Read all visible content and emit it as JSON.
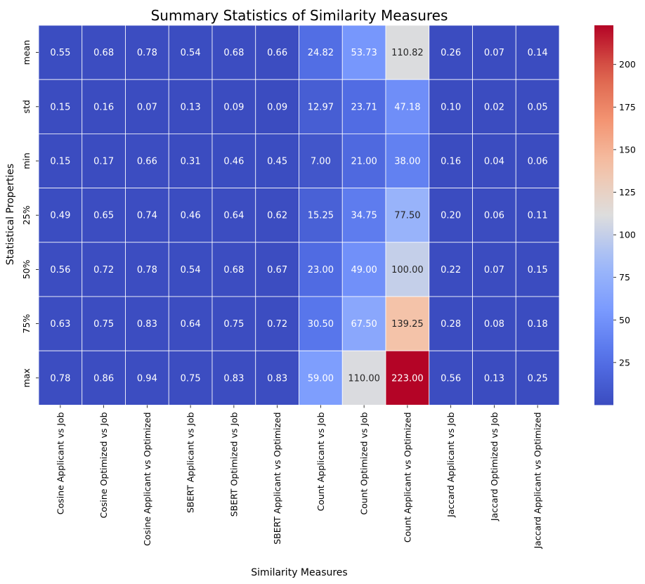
{
  "chart_data": {
    "type": "heatmap",
    "title": "Summary Statistics of Similarity Measures",
    "xlabel": "Similarity Measures",
    "ylabel": "Statistical Properties",
    "columns": [
      "Cosine Applicant vs Job",
      "Cosine Optimized vs Job",
      "Cosine Applicant vs Optimized",
      "SBERT Applicant vs Job",
      "SBERT Optimized vs Job",
      "SBERT Applicant vs Optimized",
      "Count Applicant vs Job",
      "Count Optimized vs Job",
      "Count Applicant vs Optimized",
      "Jaccard Applicant vs Job",
      "Jaccard Optimized vs Job",
      "Jaccard Applicant vs Optimized"
    ],
    "rows": [
      "mean",
      "std",
      "min",
      "25%",
      "50%",
      "75%",
      "max"
    ],
    "values": [
      [
        0.55,
        0.68,
        0.78,
        0.54,
        0.68,
        0.66,
        24.82,
        53.73,
        110.82,
        0.26,
        0.07,
        0.14
      ],
      [
        0.15,
        0.16,
        0.07,
        0.13,
        0.09,
        0.09,
        12.97,
        23.71,
        47.18,
        0.1,
        0.02,
        0.05
      ],
      [
        0.15,
        0.17,
        0.66,
        0.31,
        0.46,
        0.45,
        7.0,
        21.0,
        38.0,
        0.16,
        0.04,
        0.06
      ],
      [
        0.49,
        0.65,
        0.74,
        0.46,
        0.64,
        0.62,
        15.25,
        34.75,
        77.5,
        0.2,
        0.06,
        0.11
      ],
      [
        0.56,
        0.72,
        0.78,
        0.54,
        0.68,
        0.67,
        23.0,
        49.0,
        100.0,
        0.22,
        0.07,
        0.15
      ],
      [
        0.63,
        0.75,
        0.83,
        0.64,
        0.75,
        0.72,
        30.5,
        67.5,
        139.25,
        0.28,
        0.08,
        0.18
      ],
      [
        0.78,
        0.86,
        0.94,
        0.75,
        0.83,
        0.83,
        59.0,
        110.0,
        223.0,
        0.56,
        0.13,
        0.25
      ]
    ],
    "value_format": "2 decimals",
    "colormap": "coolwarm",
    "vmin": 0.02,
    "vmax": 223.0,
    "colorbar_ticks": [
      25,
      50,
      75,
      100,
      125,
      150,
      175,
      200
    ],
    "colors": {
      "low": "#3b4cc0",
      "mid": "#dddddd",
      "high": "#b40426",
      "cell_border": "#ffffff"
    },
    "grid": false,
    "legend": "colorbar-right"
  }
}
